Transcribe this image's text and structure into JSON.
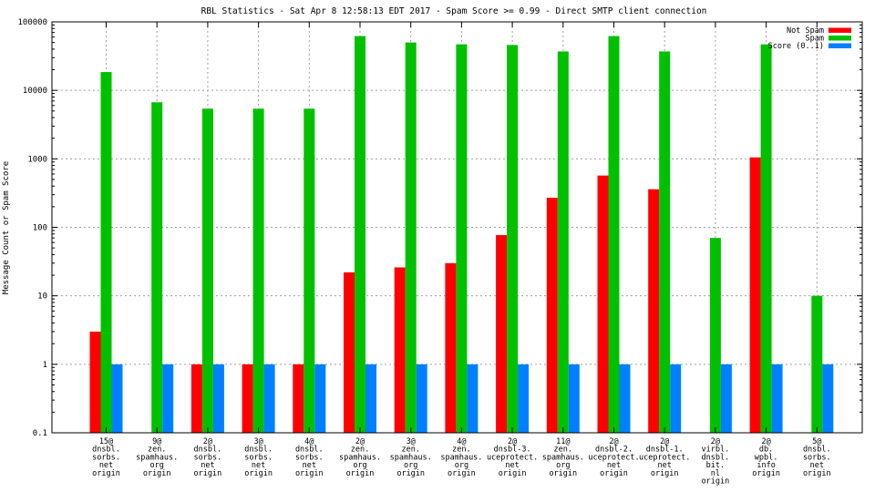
{
  "chart_data": {
    "type": "bar",
    "title": "RBL Statistics - Sat Apr  8 12:58:13 EDT 2017 - Spam Score >= 0.99 - Direct SMTP client connection",
    "xlabel": "",
    "ylabel": "Message Count or Spam Score",
    "yscale": "log",
    "ylim": [
      0.1,
      100000
    ],
    "yticks": [
      "0.1",
      "1",
      "10",
      "100",
      "1000",
      "10000",
      "100000"
    ],
    "grid": true,
    "legend_position": "top-right",
    "categories": [
      [
        "15@",
        "dnsbl.",
        "sorbs.",
        "net",
        "origin"
      ],
      [
        "9@",
        "zen.",
        "spamhaus.",
        "org",
        "origin"
      ],
      [
        "2@",
        "dnsbl.",
        "sorbs.",
        "net",
        "origin"
      ],
      [
        "3@",
        "dnsbl.",
        "sorbs.",
        "net",
        "origin"
      ],
      [
        "4@",
        "dnsbl.",
        "sorbs.",
        "net",
        "origin"
      ],
      [
        "2@",
        "zen.",
        "spamhaus.",
        "org",
        "origin"
      ],
      [
        "3@",
        "zen.",
        "spamhaus.",
        "org",
        "origin"
      ],
      [
        "4@",
        "zen.",
        "spamhaus.",
        "org",
        "origin"
      ],
      [
        "2@",
        "dnsbl-3.",
        "uceprotect.",
        "net",
        "origin"
      ],
      [
        "11@",
        "zen.",
        "spamhaus.",
        "org",
        "origin"
      ],
      [
        "2@",
        "dnsbl-2.",
        "uceprotect.",
        "net",
        "origin"
      ],
      [
        "2@",
        "dnsbl-1.",
        "uceprotect.",
        "net",
        "origin"
      ],
      [
        "2@",
        "virbl.",
        "dnsbl.",
        "bit.",
        "nl",
        "origin"
      ],
      [
        "2@",
        "db.",
        "wpbl.",
        "info",
        "origin"
      ],
      [
        "5@",
        "dnsbl.",
        "sorbs.",
        "net",
        "origin"
      ]
    ],
    "series": [
      {
        "name": "Not Spam",
        "color": "#ff0000",
        "values": [
          3,
          null,
          1,
          1,
          1,
          22,
          26,
          30,
          77,
          270,
          570,
          360,
          null,
          1050,
          null
        ]
      },
      {
        "name": "Spam",
        "color": "#00c000",
        "values": [
          18500,
          6700,
          5400,
          5400,
          5400,
          62000,
          50000,
          47000,
          46000,
          37000,
          62000,
          37000,
          70,
          47000,
          10
        ]
      },
      {
        "name": "Score (0..1)",
        "color": "#0080ff",
        "values": [
          1,
          1,
          1,
          1,
          1,
          1,
          1,
          1,
          1,
          1,
          1,
          1,
          1,
          1,
          1
        ]
      }
    ]
  }
}
